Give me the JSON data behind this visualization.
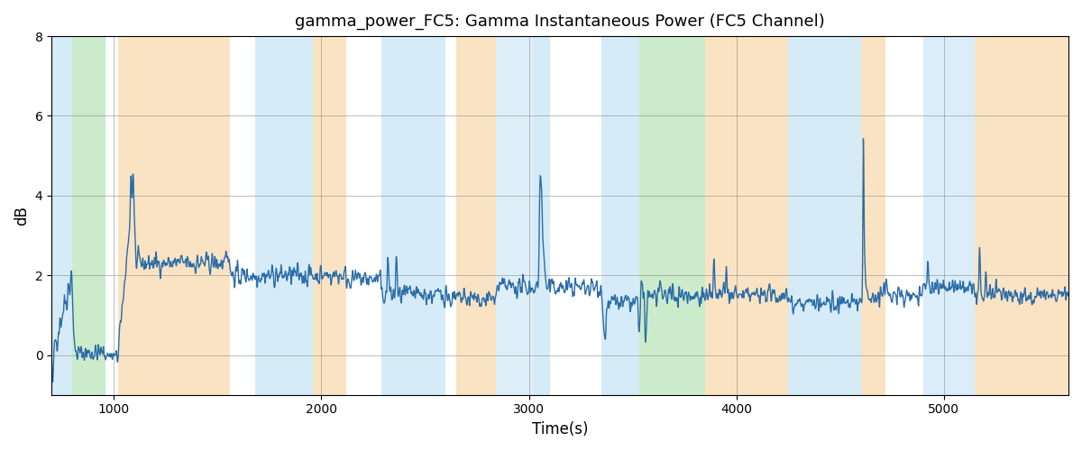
{
  "title": "gamma_power_FC5: Gamma Instantaneous Power (FC5 Channel)",
  "xlabel": "Time(s)",
  "ylabel": "dB",
  "xlim": [
    700,
    5600
  ],
  "ylim": [
    -1,
    8
  ],
  "yticks": [
    0,
    2,
    4,
    6,
    8
  ],
  "xticks": [
    1000,
    2000,
    3000,
    4000,
    5000
  ],
  "line_color": "#2b6ca8",
  "line_width": 1.0,
  "bg_color": "white",
  "bands": [
    {
      "start": 700,
      "end": 800,
      "color": "#add8f0",
      "alpha": 0.5
    },
    {
      "start": 800,
      "end": 960,
      "color": "#98d898",
      "alpha": 0.5
    },
    {
      "start": 1020,
      "end": 1560,
      "color": "#f5c888",
      "alpha": 0.5
    },
    {
      "start": 1680,
      "end": 1960,
      "color": "#add8f0",
      "alpha": 0.5
    },
    {
      "start": 1960,
      "end": 2120,
      "color": "#f5c888",
      "alpha": 0.5
    },
    {
      "start": 2290,
      "end": 2600,
      "color": "#add8f0",
      "alpha": 0.5
    },
    {
      "start": 2650,
      "end": 2840,
      "color": "#f5c888",
      "alpha": 0.5
    },
    {
      "start": 2840,
      "end": 3020,
      "color": "#add8f0",
      "alpha": 0.4
    },
    {
      "start": 3020,
      "end": 3060,
      "color": "#add8f0",
      "alpha": 0.5
    },
    {
      "start": 3060,
      "end": 3100,
      "color": "#add8f0",
      "alpha": 0.5
    },
    {
      "start": 3350,
      "end": 3530,
      "color": "#add8f0",
      "alpha": 0.5
    },
    {
      "start": 3530,
      "end": 3850,
      "color": "#98d898",
      "alpha": 0.5
    },
    {
      "start": 3850,
      "end": 4250,
      "color": "#f5c888",
      "alpha": 0.5
    },
    {
      "start": 4250,
      "end": 4600,
      "color": "#add8f0",
      "alpha": 0.5
    },
    {
      "start": 4600,
      "end": 4720,
      "color": "#f5c888",
      "alpha": 0.5
    },
    {
      "start": 4900,
      "end": 5150,
      "color": "#add8f0",
      "alpha": 0.45
    },
    {
      "start": 5150,
      "end": 5600,
      "color": "#f5c888",
      "alpha": 0.5
    }
  ],
  "seed": 42
}
